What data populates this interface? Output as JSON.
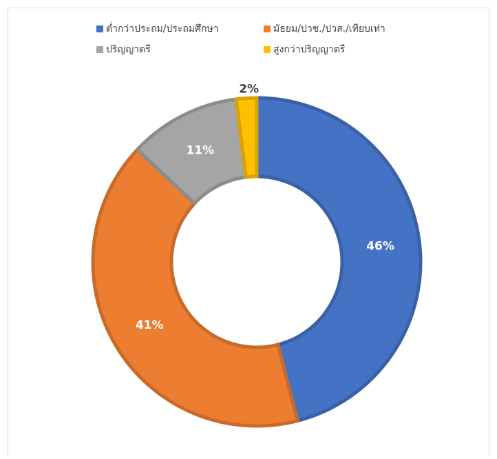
{
  "chart_data": {
    "type": "donut",
    "categories": [
      "ต่ำกว่าประถม/ประถมศึกษา",
      "มัธยม/ปวช./ปวส./เทียบเท่า",
      "ปริญญาตรี",
      "สูงกว่าปริญญาตรี"
    ],
    "values": [
      46,
      41,
      11,
      2
    ],
    "value_labels": [
      "46%",
      "41%",
      "11%",
      "2%"
    ],
    "colors": [
      "#4472c4",
      "#ed7d31",
      "#a5a5a5",
      "#ffc000"
    ],
    "legend": "top"
  }
}
